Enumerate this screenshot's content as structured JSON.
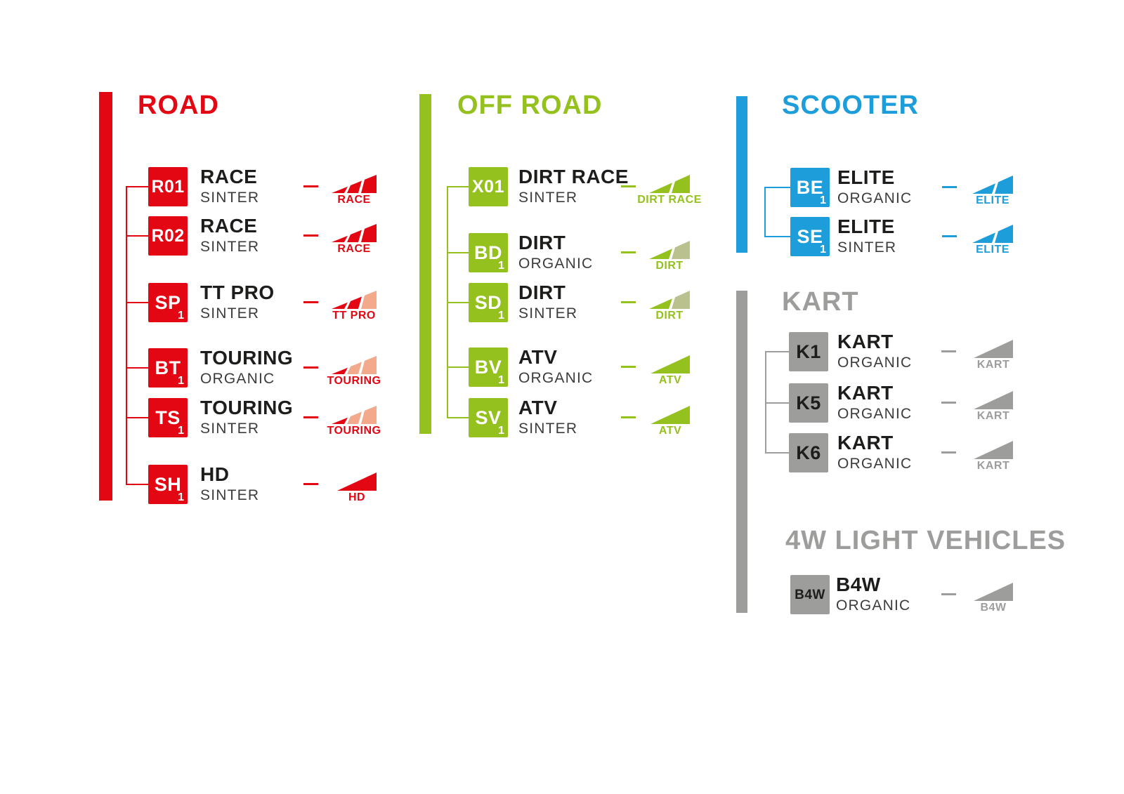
{
  "page": {
    "background": "#ffffff"
  },
  "palette": {
    "road_red": "#e30613",
    "road_salmon": "#f2a98c",
    "offroad_green": "#95c11f",
    "offroad_sage": "#bac18e",
    "scooter_blue": "#1d9dd9",
    "gray": "#9d9d9c",
    "text_dark": "#1d1d1b",
    "material_gray": "#3c3c3b"
  },
  "sections": [
    {
      "id": "road",
      "title": "ROAD",
      "color": "#e30613",
      "badge_text_color": "#ffffff",
      "items": [
        {
          "code": "R01",
          "sub": "",
          "name": "RACE",
          "material": "SINTER",
          "icon": {
            "label": "RACE",
            "segment_colors": [
              "#e30613",
              "#e30613",
              "#e30613"
            ]
          }
        },
        {
          "code": "R02",
          "sub": "",
          "name": "RACE",
          "material": "SINTER",
          "icon": {
            "label": "RACE",
            "segment_colors": [
              "#e30613",
              "#e30613",
              "#e30613"
            ]
          }
        },
        {
          "code": "SP",
          "sub": "1",
          "name": "TT PRO",
          "material": "SINTER",
          "icon": {
            "label": "TT PRO",
            "segment_colors": [
              "#e30613",
              "#e30613",
              "#f2a98c"
            ]
          }
        },
        {
          "code": "BT",
          "sub": "1",
          "name": "TOURING",
          "material": "ORGANIC",
          "icon": {
            "label": "TOURING",
            "segment_colors": [
              "#e30613",
              "#f2a98c",
              "#f2a98c"
            ]
          }
        },
        {
          "code": "TS",
          "sub": "1",
          "name": "TOURING",
          "material": "SINTER",
          "icon": {
            "label": "TOURING",
            "segment_colors": [
              "#e30613",
              "#f2a98c",
              "#f2a98c"
            ]
          }
        },
        {
          "code": "SH",
          "sub": "1",
          "name": "HD",
          "material": "SINTER",
          "icon": {
            "label": "HD",
            "segment_colors": [
              "#e30613"
            ]
          }
        }
      ]
    },
    {
      "id": "offroad",
      "title": "OFF ROAD",
      "color": "#95c11f",
      "badge_text_color": "#ffffff",
      "items": [
        {
          "code": "X01",
          "sub": "",
          "name": "DIRT RACE",
          "material": "SINTER",
          "icon": {
            "label": "DIRT RACE",
            "segment_colors": [
              "#95c11f",
              "#95c11f"
            ]
          }
        },
        {
          "code": "BD",
          "sub": "1",
          "name": "DIRT",
          "material": "ORGANIC",
          "icon": {
            "label": "DIRT",
            "segment_colors": [
              "#95c11f",
              "#bac18e"
            ]
          }
        },
        {
          "code": "SD",
          "sub": "1",
          "name": "DIRT",
          "material": "SINTER",
          "icon": {
            "label": "DIRT",
            "segment_colors": [
              "#95c11f",
              "#bac18e"
            ]
          }
        },
        {
          "code": "BV",
          "sub": "1",
          "name": "ATV",
          "material": "ORGANIC",
          "icon": {
            "label": "ATV",
            "segment_colors": [
              "#95c11f"
            ]
          }
        },
        {
          "code": "SV",
          "sub": "1",
          "name": "ATV",
          "material": "SINTER",
          "icon": {
            "label": "ATV",
            "segment_colors": [
              "#95c11f"
            ]
          }
        }
      ]
    },
    {
      "id": "scooter",
      "title": "SCOOTER",
      "color": "#1d9dd9",
      "badge_text_color": "#ffffff",
      "items": [
        {
          "code": "BE",
          "sub": "1",
          "name": "ELITE",
          "material": "ORGANIC",
          "icon": {
            "label": "ELITE",
            "segment_colors": [
              "#1d9dd9",
              "#1d9dd9"
            ]
          }
        },
        {
          "code": "SE",
          "sub": "1",
          "name": "ELITE",
          "material": "SINTER",
          "icon": {
            "label": "ELITE",
            "segment_colors": [
              "#1d9dd9",
              "#1d9dd9"
            ]
          }
        }
      ]
    },
    {
      "id": "kart",
      "title": "KART",
      "color": "#9d9d9c",
      "badge_text_color": "#1d1d1b",
      "items": [
        {
          "code": "K1",
          "sub": "",
          "name": "KART",
          "material": "ORGANIC",
          "icon": {
            "label": "KART",
            "segment_colors": [
              "#9d9d9c"
            ]
          }
        },
        {
          "code": "K5",
          "sub": "",
          "name": "KART",
          "material": "ORGANIC",
          "icon": {
            "label": "KART",
            "segment_colors": [
              "#9d9d9c"
            ]
          }
        },
        {
          "code": "K6",
          "sub": "",
          "name": "KART",
          "material": "ORGANIC",
          "icon": {
            "label": "KART",
            "segment_colors": [
              "#9d9d9c"
            ]
          }
        }
      ]
    },
    {
      "id": "fourw",
      "title": "4W LIGHT VEHICLES",
      "color": "#9d9d9c",
      "badge_text_color": "#1d1d1b",
      "items": [
        {
          "code": "B4W",
          "sub": "",
          "name": "B4W",
          "material": "ORGANIC",
          "icon": {
            "label": "B4W",
            "segment_colors": [
              "#9d9d9c"
            ]
          }
        }
      ]
    }
  ]
}
